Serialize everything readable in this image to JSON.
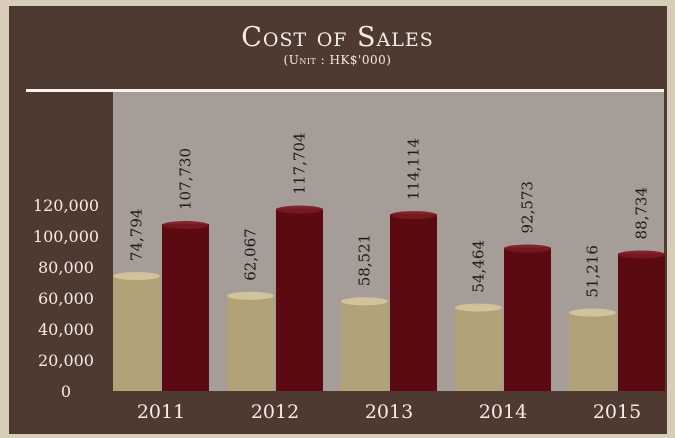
{
  "chart_data": {
    "type": "bar",
    "title": "Cost of Sales",
    "subtitle": "(Unit : HK$'000)",
    "categories": [
      "2011",
      "2012",
      "2013",
      "2014",
      "2015"
    ],
    "series": [
      {
        "values": [
          74794,
          62067,
          58521,
          54464,
          51216
        ],
        "labels": [
          "74,794",
          "62,067",
          "58,521",
          "54,464",
          "51,216"
        ]
      },
      {
        "values": [
          107730,
          117704,
          114114,
          92573,
          88734
        ],
        "labels": [
          "107,730",
          "117,704",
          "114,114",
          "92,573",
          "88,734"
        ]
      }
    ],
    "yticks": [
      "0",
      "20,000",
      "40,000",
      "60,000",
      "80,000",
      "100,000",
      "120,000"
    ],
    "ylim": [
      0,
      120000
    ],
    "colors": {
      "series1": "#b1a278",
      "series2": "#5a0a10",
      "plot_bg": "#a79d98",
      "frame": "#4f3a32",
      "text_light": "#f3ede4",
      "label_dark": "#1a1a1a"
    }
  }
}
